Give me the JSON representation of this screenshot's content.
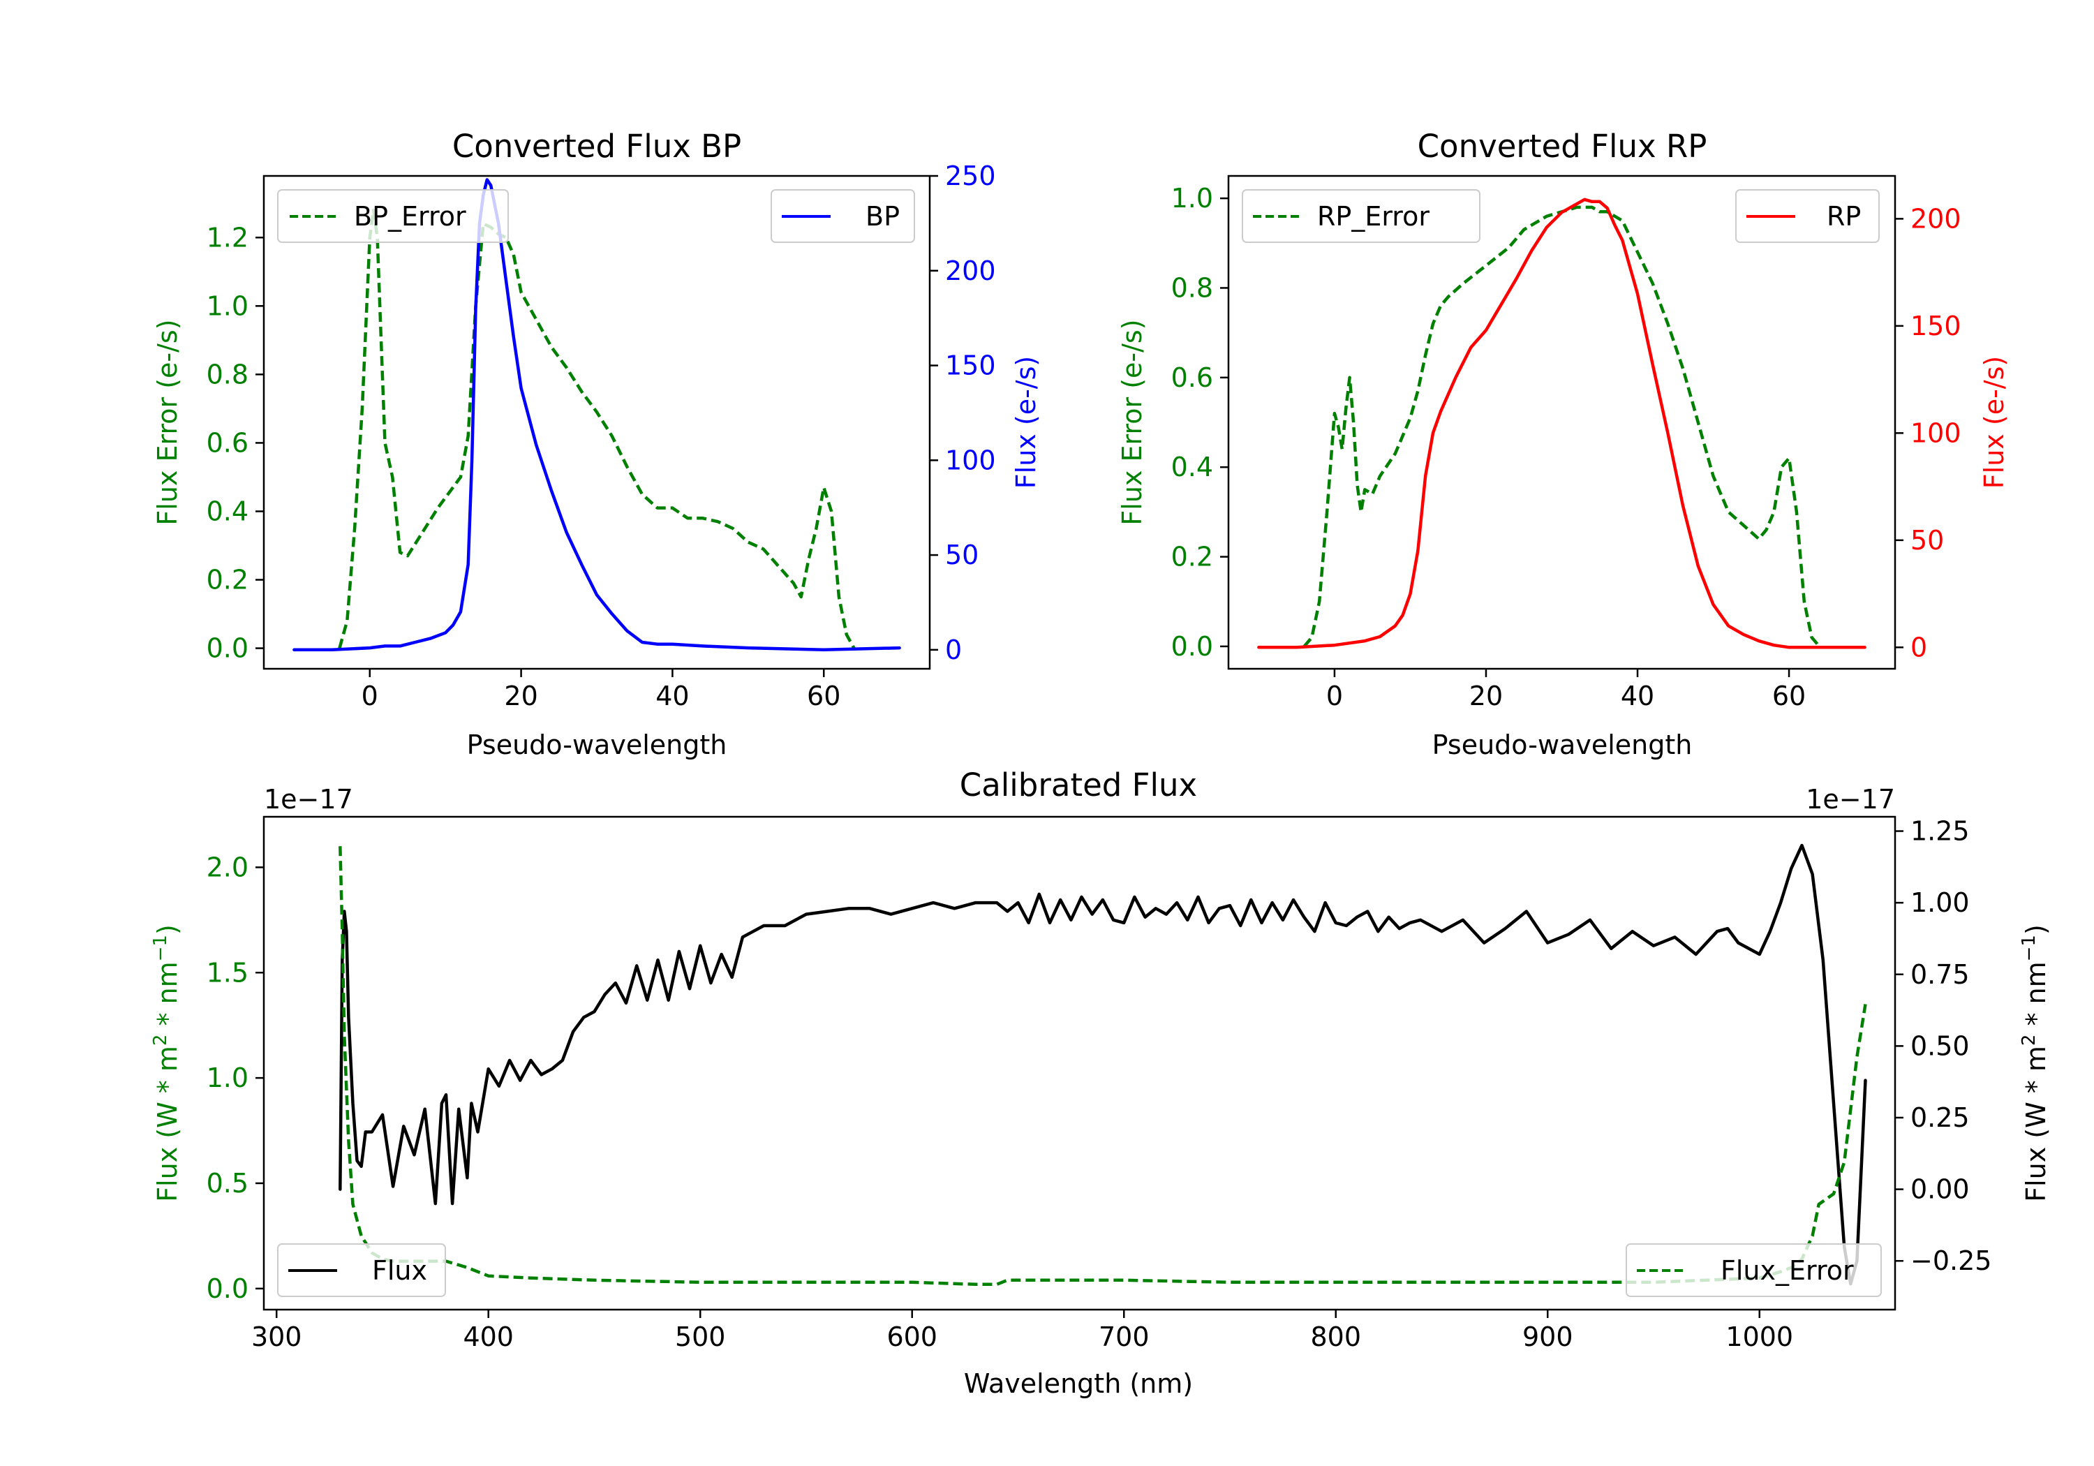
{
  "chart_data": [
    {
      "type": "line",
      "panel": "bp",
      "title": "Converted Flux BP",
      "xlabel": "Pseudo-wavelength",
      "ylabel_left": "Flux Error (e-/s)",
      "ylabel_right": "Flux (e-/s)",
      "xlim": [
        -14,
        74
      ],
      "ylim_left": [
        -0.06,
        1.38
      ],
      "ylim_right": [
        -10,
        250
      ],
      "xticks": [
        0,
        20,
        40,
        60
      ],
      "yticks_left": [
        0.0,
        0.2,
        0.4,
        0.6,
        0.8,
        1.0,
        1.2
      ],
      "yticks_right": [
        0,
        50,
        100,
        150,
        200,
        250
      ],
      "legend_left": "top-left",
      "legend_right": "top-right",
      "series": [
        {
          "name": "BP_Error",
          "axis": "left",
          "color": "#008000",
          "dash": "dashed",
          "x": [
            -4,
            -3,
            -2,
            -1,
            0,
            0.5,
            1,
            1.5,
            2,
            3,
            4,
            5,
            7,
            9,
            12,
            13,
            14,
            15,
            16,
            17,
            18,
            19,
            20,
            22,
            24,
            26,
            28,
            30,
            32,
            34,
            36,
            38,
            40,
            42,
            44,
            46,
            48,
            50,
            52,
            54,
            56,
            57,
            58,
            59,
            60,
            61,
            62,
            63,
            64
          ],
          "y": [
            0.0,
            0.08,
            0.35,
            0.7,
            1.2,
            1.28,
            1.2,
            0.9,
            0.6,
            0.5,
            0.28,
            0.27,
            0.34,
            0.41,
            0.5,
            0.62,
            1.0,
            1.24,
            1.23,
            1.21,
            1.2,
            1.15,
            1.04,
            0.96,
            0.88,
            0.82,
            0.75,
            0.69,
            0.62,
            0.53,
            0.45,
            0.41,
            0.41,
            0.38,
            0.38,
            0.37,
            0.35,
            0.31,
            0.29,
            0.24,
            0.19,
            0.15,
            0.26,
            0.35,
            0.47,
            0.4,
            0.15,
            0.04,
            0.0
          ]
        },
        {
          "name": "BP",
          "axis": "right",
          "color": "#0000ff",
          "dash": "solid",
          "x": [
            -10,
            -5,
            0,
            2,
            4,
            6,
            8,
            10,
            11,
            12,
            13,
            13.5,
            14,
            14.5,
            15,
            15.5,
            16,
            17,
            18,
            19,
            20,
            22,
            24,
            26,
            28,
            30,
            32,
            34,
            36,
            38,
            40,
            44,
            50,
            60,
            70
          ],
          "y": [
            0,
            0,
            1,
            2,
            2,
            4,
            6,
            9,
            13,
            20,
            45,
            100,
            180,
            225,
            240,
            248,
            245,
            225,
            195,
            165,
            138,
            108,
            84,
            62,
            45,
            29,
            19,
            10,
            4,
            3,
            3,
            2,
            1,
            0,
            1
          ]
        }
      ]
    },
    {
      "type": "line",
      "panel": "rp",
      "title": "Converted Flux RP",
      "xlabel": "Pseudo-wavelength",
      "ylabel_left": "Flux Error (e-/s)",
      "ylabel_right": "Flux (e-/s)",
      "xlim": [
        -14,
        74
      ],
      "ylim_left": [
        -0.05,
        1.05
      ],
      "ylim_right": [
        -10,
        220
      ],
      "xticks": [
        0,
        20,
        40,
        60
      ],
      "yticks_left": [
        0.0,
        0.2,
        0.4,
        0.6,
        0.8,
        1.0
      ],
      "yticks_right": [
        0,
        50,
        100,
        150,
        200
      ],
      "legend_left": "top-left",
      "legend_right": "top-right",
      "series": [
        {
          "name": "RP_Error",
          "axis": "left",
          "color": "#008000",
          "dash": "dashed",
          "x": [
            -4,
            -3,
            -2,
            -1,
            0,
            0.5,
            1,
            1.5,
            2,
            2.5,
            3,
            3.5,
            4,
            5,
            6,
            8,
            10,
            11,
            12,
            13,
            14,
            15,
            17,
            20,
            23,
            25,
            28,
            30,
            32,
            34,
            35,
            36,
            38,
            40,
            42,
            44,
            46,
            48,
            50,
            52,
            54,
            56,
            57,
            58,
            59,
            60,
            61,
            62,
            63,
            64
          ],
          "y": [
            0.0,
            0.02,
            0.1,
            0.3,
            0.52,
            0.49,
            0.44,
            0.53,
            0.6,
            0.5,
            0.36,
            0.3,
            0.35,
            0.34,
            0.38,
            0.43,
            0.51,
            0.57,
            0.65,
            0.72,
            0.76,
            0.78,
            0.81,
            0.85,
            0.89,
            0.93,
            0.96,
            0.97,
            0.98,
            0.98,
            0.97,
            0.97,
            0.95,
            0.88,
            0.81,
            0.72,
            0.62,
            0.5,
            0.38,
            0.3,
            0.27,
            0.24,
            0.26,
            0.3,
            0.4,
            0.42,
            0.3,
            0.1,
            0.02,
            0.0
          ]
        },
        {
          "name": "RP",
          "axis": "right",
          "color": "#ff0000",
          "dash": "solid",
          "x": [
            -10,
            -5,
            0,
            4,
            6,
            8,
            9,
            10,
            11,
            12,
            13,
            14,
            16,
            18,
            20,
            22,
            24,
            26,
            28,
            30,
            32,
            33,
            34,
            35,
            36,
            37,
            38,
            40,
            42,
            44,
            46,
            48,
            50,
            52,
            54,
            56,
            58,
            60,
            62,
            70
          ],
          "y": [
            0,
            0,
            1,
            3,
            5,
            10,
            15,
            25,
            45,
            80,
            100,
            110,
            126,
            140,
            148,
            160,
            172,
            185,
            196,
            203,
            207,
            209,
            208,
            208,
            205,
            197,
            190,
            165,
            132,
            100,
            66,
            38,
            20,
            10,
            6,
            3,
            1,
            0,
            0,
            0
          ]
        }
      ]
    },
    {
      "type": "line",
      "panel": "calibrated",
      "title": "Calibrated Flux",
      "xlabel": "Wavelength (nm)",
      "ylabel_left": "Flux (W * m",
      "ylabel_right": "Flux (W * m",
      "ylabel_sup_1": "2",
      "ylabel_mid": " * nm",
      "ylabel_sup_2": "−1",
      "ylabel_end": ")",
      "offset_left": "1e−17",
      "offset_right": "1e−17",
      "xlim": [
        294,
        1064
      ],
      "ylim_left": [
        -0.1,
        2.24
      ],
      "ylim_right": [
        -0.42,
        1.3
      ],
      "xticks": [
        300,
        400,
        500,
        600,
        700,
        800,
        900,
        1000
      ],
      "yticks_left": [
        "0.0",
        "0.5",
        "1.0",
        "1.5",
        "2.0"
      ],
      "yticks_right": [
        "−0.25",
        "0.00",
        "0.25",
        "0.50",
        "0.75",
        "1.00",
        "1.25"
      ],
      "legend_left": "bottom-left",
      "legend_right": "bottom-right",
      "series": [
        {
          "name": "Flux",
          "axis": "right",
          "color": "#000000",
          "dash": "solid",
          "x": [
            330,
            331,
            332,
            333,
            334,
            336,
            338,
            340,
            342,
            345,
            350,
            355,
            360,
            365,
            370,
            375,
            378,
            380,
            383,
            386,
            390,
            392,
            395,
            400,
            405,
            410,
            415,
            420,
            425,
            430,
            435,
            440,
            445,
            450,
            455,
            460,
            465,
            470,
            475,
            480,
            485,
            490,
            495,
            500,
            505,
            510,
            515,
            520,
            525,
            530,
            540,
            550,
            560,
            570,
            580,
            590,
            600,
            610,
            620,
            630,
            640,
            645,
            650,
            655,
            660,
            665,
            670,
            675,
            680,
            685,
            690,
            695,
            700,
            705,
            710,
            715,
            720,
            725,
            730,
            735,
            740,
            745,
            750,
            755,
            760,
            765,
            770,
            775,
            780,
            785,
            790,
            795,
            800,
            805,
            810,
            815,
            820,
            825,
            830,
            835,
            840,
            850,
            860,
            870,
            880,
            890,
            900,
            910,
            920,
            930,
            940,
            950,
            960,
            970,
            980,
            985,
            990,
            1000,
            1005,
            1010,
            1015,
            1020,
            1025,
            1030,
            1035,
            1040,
            1043,
            1046,
            1050
          ],
          "y": [
            0.0,
            0.8,
            0.97,
            0.9,
            0.6,
            0.3,
            0.1,
            0.08,
            0.2,
            0.2,
            0.26,
            0.01,
            0.22,
            0.12,
            0.28,
            -0.05,
            0.3,
            0.33,
            -0.05,
            0.28,
            0.04,
            0.3,
            0.2,
            0.42,
            0.36,
            0.45,
            0.38,
            0.45,
            0.4,
            0.42,
            0.45,
            0.55,
            0.6,
            0.62,
            0.68,
            0.72,
            0.65,
            0.78,
            0.66,
            0.8,
            0.66,
            0.83,
            0.7,
            0.85,
            0.72,
            0.82,
            0.74,
            0.88,
            0.9,
            0.92,
            0.92,
            0.96,
            0.97,
            0.98,
            0.98,
            0.96,
            0.98,
            1.0,
            0.98,
            1.0,
            1.0,
            0.97,
            1.0,
            0.93,
            1.03,
            0.93,
            1.01,
            0.94,
            1.02,
            0.96,
            1.01,
            0.94,
            0.93,
            1.02,
            0.95,
            0.98,
            0.96,
            1.0,
            0.94,
            1.02,
            0.93,
            0.98,
            0.99,
            0.92,
            1.01,
            0.93,
            1.0,
            0.94,
            1.01,
            0.95,
            0.9,
            1.0,
            0.93,
            0.92,
            0.95,
            0.97,
            0.9,
            0.95,
            0.91,
            0.93,
            0.94,
            0.9,
            0.94,
            0.86,
            0.91,
            0.97,
            0.86,
            0.89,
            0.94,
            0.84,
            0.9,
            0.85,
            0.88,
            0.82,
            0.9,
            0.91,
            0.86,
            0.82,
            0.9,
            1.0,
            1.12,
            1.2,
            1.1,
            0.8,
            0.3,
            -0.2,
            -0.33,
            -0.25,
            0.38
          ]
        },
        {
          "name": "Flux_Error",
          "axis": "left",
          "color": "#008000",
          "dash": "dashed",
          "x": [
            330,
            331,
            332,
            334,
            336,
            340,
            345,
            350,
            355,
            360,
            370,
            380,
            390,
            400,
            420,
            450,
            500,
            550,
            600,
            630,
            640,
            645,
            650,
            700,
            750,
            800,
            900,
            950,
            1000,
            1010,
            1015,
            1020,
            1025,
            1028,
            1035,
            1040,
            1043,
            1046,
            1050
          ],
          "y": [
            2.1,
            1.7,
            1.2,
            0.7,
            0.4,
            0.25,
            0.17,
            0.14,
            0.13,
            0.13,
            0.13,
            0.13,
            0.1,
            0.06,
            0.05,
            0.04,
            0.03,
            0.03,
            0.03,
            0.02,
            0.02,
            0.04,
            0.04,
            0.04,
            0.03,
            0.03,
            0.03,
            0.03,
            0.05,
            0.08,
            0.1,
            0.14,
            0.25,
            0.4,
            0.45,
            0.6,
            0.85,
            1.1,
            1.35
          ]
        }
      ]
    }
  ]
}
